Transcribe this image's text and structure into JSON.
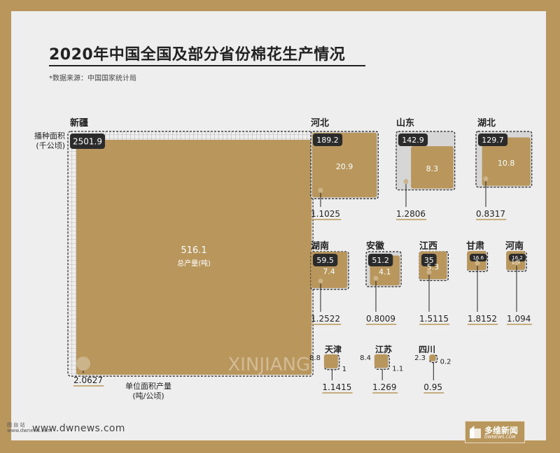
{
  "chart_data": {
    "type": "area",
    "title": "2020年中国全国及部分省份棉花生产情况",
    "source": "*数据来源：中国国家统计局",
    "area_label": "播种面积",
    "area_unit": "(千公顷)",
    "output_label": "总产量(吨)",
    "yield_label": "单位面积产量",
    "yield_unit": "(吨/公顷)",
    "highlight_watermark": "XINJIANG",
    "provinces": [
      {
        "name": "新疆",
        "area": "2501.9",
        "output": "516.1",
        "yield": "2.0627"
      },
      {
        "name": "河北",
        "area": "189.2",
        "output": "20.9",
        "yield": "1.1025"
      },
      {
        "name": "山东",
        "area": "142.9",
        "output": "8.3",
        "yield": "1.2806"
      },
      {
        "name": "湖北",
        "area": "129.7",
        "output": "10.8",
        "yield": "0.8317"
      },
      {
        "name": "湖南",
        "area": "59.5",
        "output": "7.4",
        "yield": "1.2522"
      },
      {
        "name": "安徽",
        "area": "51.2",
        "output": "4.1",
        "yield": "0.8009"
      },
      {
        "name": "江西",
        "area": "35",
        "output": "5.3",
        "yield": "1.5115"
      },
      {
        "name": "甘肃",
        "area": "16.6",
        "output": "3",
        "yield": "1.8152"
      },
      {
        "name": "河南",
        "area": "16.2",
        "output": "1.8",
        "yield": "1.094"
      },
      {
        "name": "天津",
        "area": "8.8",
        "output": "1",
        "yield": "1.1415"
      },
      {
        "name": "江苏",
        "area": "8.4",
        "output": "1.1",
        "yield": "1.269"
      },
      {
        "name": "四川",
        "area": "2.3",
        "output": "0.2",
        "yield": "0.95"
      }
    ]
  },
  "colors": {
    "gold": "#b9975c",
    "dark_label": "#2b2b2b",
    "panel": "#eeeeee",
    "area_fill": "#d6d6d6"
  },
  "footer": {
    "logo_text": "图 自 站 www.dwnews.com",
    "website": "www.dwnews.com",
    "brand_name": "多维新闻",
    "brand_url": "DWNEWS.COM"
  }
}
